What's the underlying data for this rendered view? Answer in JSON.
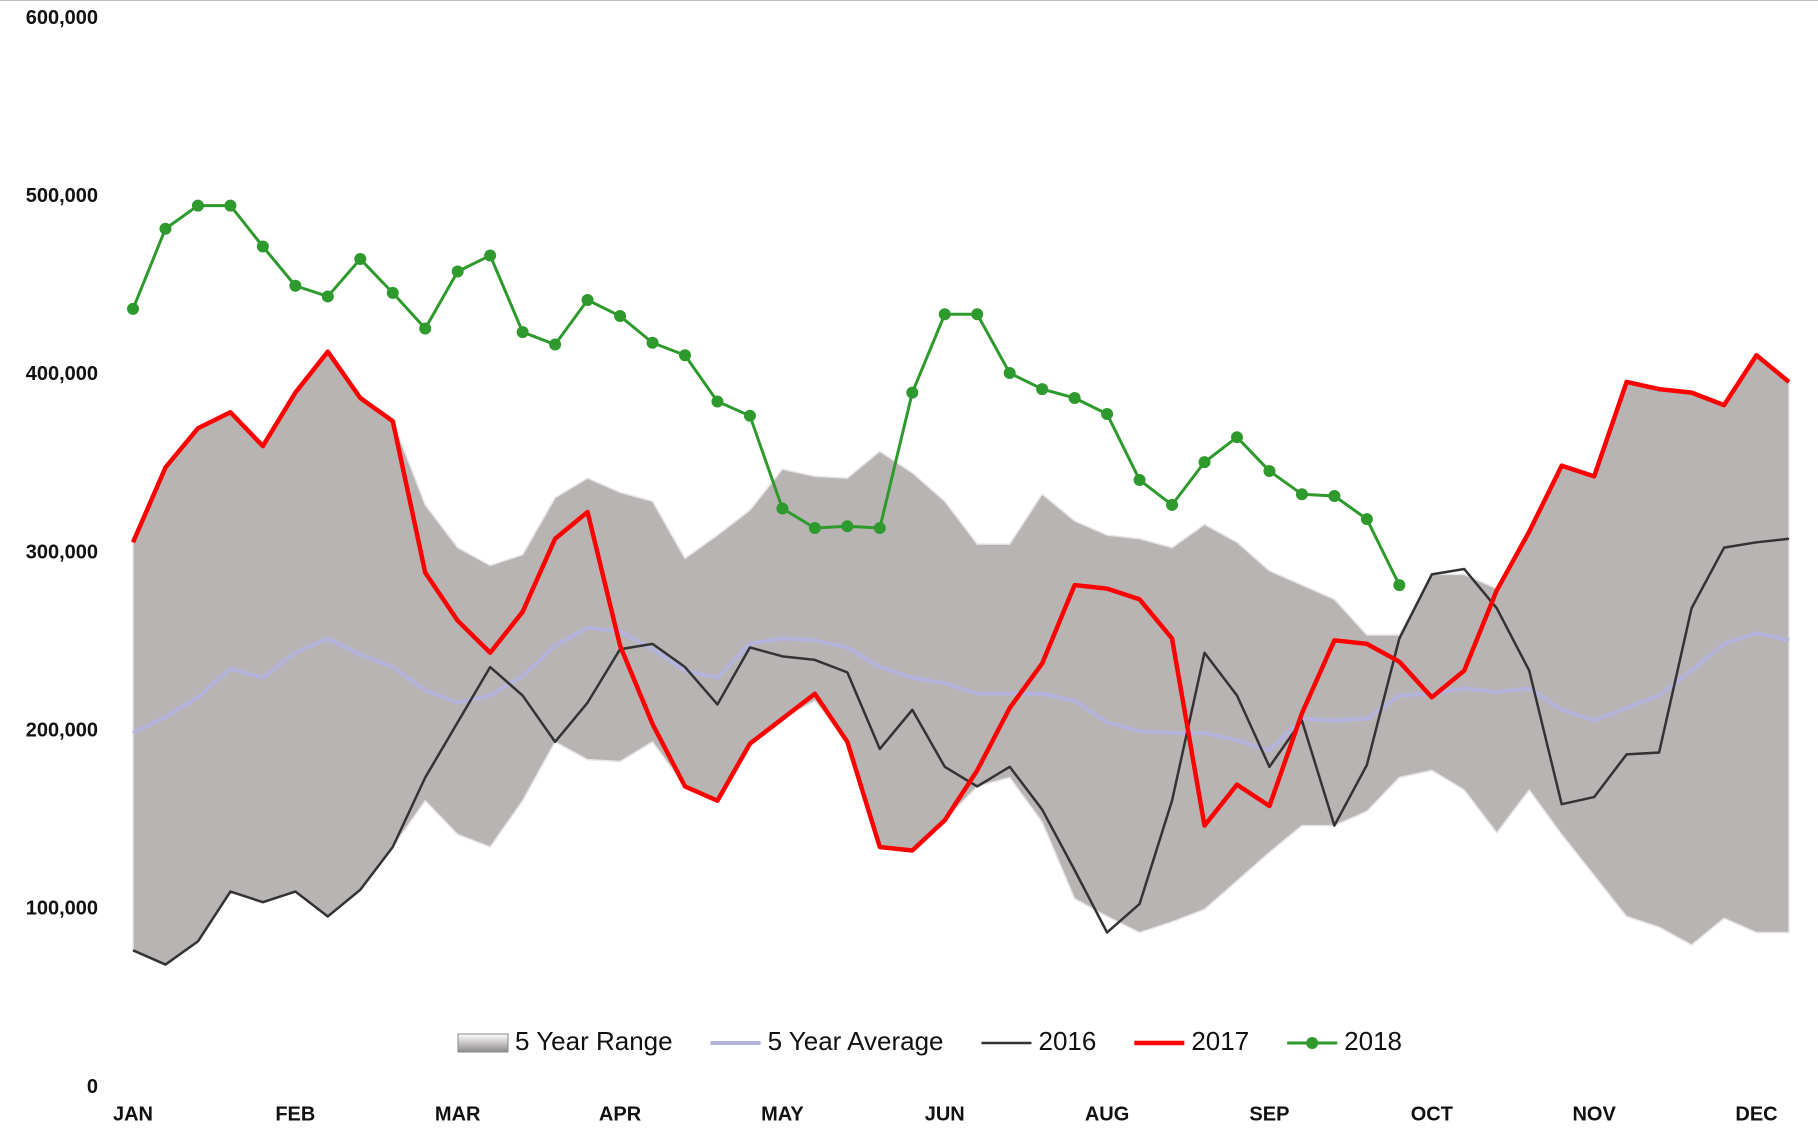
{
  "chart_data": {
    "type": "line",
    "categories": [
      "JAN",
      null,
      null,
      null,
      null,
      "FEB",
      null,
      null,
      null,
      null,
      "MAR",
      null,
      null,
      null,
      null,
      "APR",
      null,
      null,
      null,
      null,
      "MAY",
      null,
      null,
      null,
      null,
      "JUN",
      null,
      null,
      null,
      null,
      "AUG",
      null,
      null,
      null,
      null,
      "SEP",
      null,
      null,
      null,
      null,
      "OCT",
      null,
      null,
      null,
      null,
      "NOV",
      null,
      null,
      null,
      null,
      "DEC",
      null
    ],
    "ylim": [
      0,
      600000
    ],
    "yticks": [
      0,
      {
        "value": 100000,
        "label": "100,000"
      },
      {
        "value": 200000,
        "label": "200,000"
      },
      {
        "value": 300000,
        "label": "300,000"
      },
      {
        "value": 400000,
        "label": "400,000"
      },
      {
        "value": 500000,
        "label": "500,000"
      },
      {
        "value": 600000,
        "label": "600,000"
      }
    ],
    "grid": false,
    "legend": "bottom",
    "series": [
      {
        "name": "5 Year Range",
        "type": "range",
        "color": "#b9b4b4",
        "high": [
          306000,
          348000,
          370000,
          379000,
          360000,
          390000,
          413000,
          387000,
          374000,
          327000,
          303000,
          293000,
          299000,
          331000,
          342000,
          334000,
          329000,
          297000,
          310000,
          324000,
          347000,
          343000,
          342000,
          357000,
          345000,
          329000,
          305000,
          305000,
          333000,
          318000,
          310000,
          308000,
          303000,
          316000,
          306000,
          290000,
          282000,
          274000,
          254000,
          254000,
          288000,
          288000,
          280000,
          312000,
          349000,
          343000,
          396000,
          392000,
          390000,
          383000,
          411000,
          396000
        ],
        "low": [
          77000,
          69000,
          82000,
          110000,
          104000,
          110000,
          96000,
          111000,
          135000,
          161000,
          142000,
          135000,
          161000,
          194000,
          184000,
          183000,
          194000,
          169000,
          161000,
          193000,
          207000,
          217000,
          194000,
          135000,
          133000,
          150000,
          169000,
          174000,
          149000,
          106000,
          96000,
          87000,
          93000,
          100000,
          116000,
          132000,
          147000,
          147000,
          155000,
          174000,
          178000,
          167000,
          143000,
          167000,
          142000,
          119000,
          96000,
          90000,
          80000,
          95000,
          87000,
          87000
        ]
      },
      {
        "name": "5 Year Average",
        "color": "#b3b3dc",
        "width": 4,
        "values": [
          199000,
          208000,
          219000,
          235000,
          230000,
          244000,
          252000,
          243000,
          236000,
          223000,
          216000,
          220000,
          231000,
          248000,
          258000,
          256000,
          246000,
          234000,
          230000,
          249000,
          252000,
          251000,
          247000,
          236000,
          230000,
          227000,
          221000,
          221000,
          221000,
          217000,
          205000,
          200000,
          199000,
          199000,
          195000,
          189000,
          207000,
          206000,
          207000,
          220000,
          221000,
          224000,
          222000,
          224000,
          212000,
          206000,
          213000,
          220000,
          234000,
          249000,
          255000,
          251000
        ]
      },
      {
        "name": "2016",
        "color": "#333333",
        "width": 2.5,
        "values": [
          77000,
          69000,
          82000,
          110000,
          104000,
          110000,
          96000,
          111000,
          135000,
          174000,
          205000,
          236000,
          220000,
          194000,
          216000,
          246000,
          249000,
          236000,
          215000,
          247000,
          242000,
          240000,
          233000,
          190000,
          212000,
          180000,
          169000,
          180000,
          156000,
          122000,
          87000,
          103000,
          161000,
          244000,
          220000,
          180000,
          206000,
          147000,
          181000,
          252000,
          288000,
          291000,
          269000,
          234000,
          159000,
          163000,
          187000,
          188000,
          269000,
          303000,
          306000,
          308000
        ]
      },
      {
        "name": "2017",
        "color": "#ff0000",
        "width": 4.5,
        "values": [
          306000,
          348000,
          370000,
          379000,
          360000,
          390000,
          413000,
          387000,
          374000,
          289000,
          262000,
          244000,
          267000,
          308000,
          323000,
          248000,
          204000,
          169000,
          161000,
          193000,
          207000,
          221000,
          194000,
          135000,
          133000,
          150000,
          178000,
          213000,
          238000,
          282000,
          280000,
          274000,
          252000,
          147000,
          170000,
          158000,
          210000,
          251000,
          249000,
          239000,
          219000,
          234000,
          279000,
          312000,
          349000,
          343000,
          396000,
          392000,
          390000,
          383000,
          411000,
          396000
        ]
      },
      {
        "name": "2018",
        "color": "#2e9a2e",
        "width": 3,
        "marker": true,
        "values": [
          437000,
          482000,
          495000,
          495000,
          472000,
          450000,
          444000,
          465000,
          446000,
          426000,
          458000,
          467000,
          424000,
          417000,
          442000,
          433000,
          418000,
          411000,
          385000,
          377000,
          325000,
          314000,
          315000,
          314000,
          390000,
          434000,
          434000,
          401000,
          392000,
          387000,
          378000,
          341000,
          327000,
          351000,
          365000,
          346000,
          333000,
          332000,
          319000,
          282000,
          null,
          null,
          null,
          null,
          null,
          null,
          null,
          null,
          null,
          null,
          null,
          null
        ]
      }
    ]
  }
}
